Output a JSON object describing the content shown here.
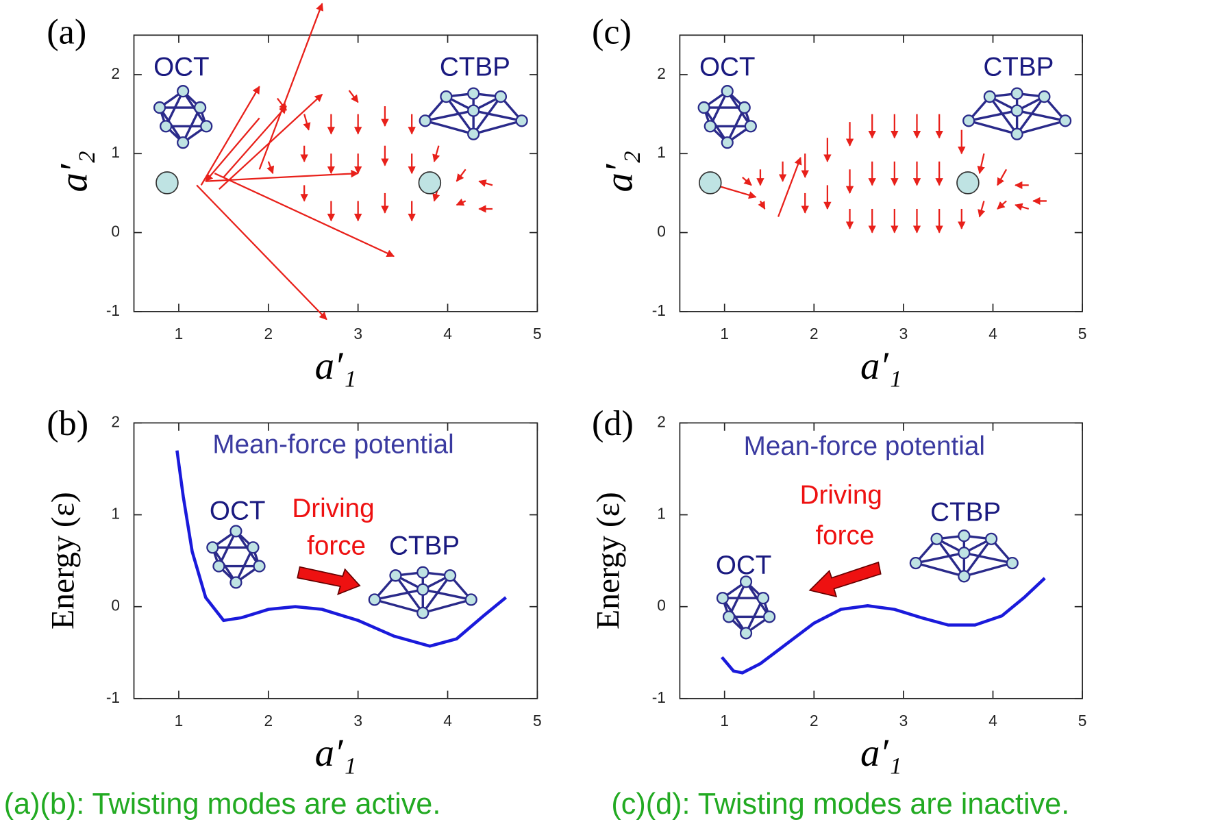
{
  "chart_data": [
    {
      "type": "quiver",
      "label": "(a)",
      "x_label": "a′₁",
      "y_label": "a′₂",
      "xlim": [
        0.5,
        5
      ],
      "ylim": [
        -1,
        2.5
      ],
      "xticks": [
        1,
        2,
        3,
        4,
        5
      ],
      "yticks": [
        -1,
        0,
        1,
        2
      ],
      "color": "#e8201a",
      "arrows": [
        [
          1.2,
          0.6,
          1.45,
          -1.7
        ],
        [
          1.4,
          0.75,
          2.0,
          -1.05
        ],
        [
          1.3,
          0.65,
          1.7,
          0.1
        ],
        [
          1.9,
          0.8,
          0.7,
          2.1
        ],
        [
          1.25,
          0.6,
          0.65,
          1.25
        ],
        [
          1.5,
          0.7,
          0.7,
          0.9
        ],
        [
          1.45,
          0.55,
          1.15,
          1.2
        ],
        [
          1.9,
          1.45,
          -0.6,
          -0.8
        ],
        [
          2.1,
          1.7,
          0.1,
          -0.15
        ],
        [
          2.4,
          1.5,
          0.05,
          -0.2
        ],
        [
          2.4,
          1.1,
          0,
          -0.2
        ],
        [
          2.4,
          0.6,
          0,
          -0.2
        ],
        [
          2.7,
          1.5,
          0,
          -0.25
        ],
        [
          2.7,
          1.0,
          0,
          -0.25
        ],
        [
          2.7,
          0.4,
          0,
          -0.25
        ],
        [
          3.0,
          1.5,
          0,
          -0.25
        ],
        [
          3.0,
          1.0,
          0,
          -0.25
        ],
        [
          3.0,
          0.4,
          0,
          -0.25
        ],
        [
          3.3,
          1.6,
          0,
          -0.25
        ],
        [
          3.3,
          1.1,
          0,
          -0.25
        ],
        [
          3.3,
          0.5,
          0,
          -0.25
        ],
        [
          3.6,
          1.5,
          0,
          -0.25
        ],
        [
          3.6,
          1.0,
          0,
          -0.25
        ],
        [
          3.6,
          0.4,
          0,
          -0.25
        ],
        [
          3.9,
          1.1,
          -0.05,
          -0.2
        ],
        [
          3.9,
          0.6,
          -0.05,
          -0.2
        ],
        [
          4.2,
          0.8,
          -0.1,
          -0.15
        ],
        [
          4.2,
          0.4,
          -0.1,
          -0.05
        ],
        [
          4.5,
          0.6,
          -0.15,
          0.05
        ],
        [
          4.5,
          0.3,
          -0.15,
          0
        ],
        [
          2.9,
          1.8,
          0.1,
          -0.15
        ],
        [
          2.0,
          0.9,
          0.05,
          -0.15
        ]
      ],
      "markers": {
        "x": [
          0.87,
          3.8
        ],
        "y": [
          0.63,
          0.63
        ],
        "color": "#bfe3e3"
      },
      "annotations": [
        "OCT",
        "CTBP"
      ]
    },
    {
      "type": "line",
      "label": "(b)",
      "x_label": "a′₁",
      "y_label": "Energy  (ε)",
      "xlim": [
        0.5,
        5
      ],
      "ylim": [
        -1,
        2
      ],
      "xticks": [
        1,
        2,
        3,
        4,
        5
      ],
      "yticks": [
        -1,
        0,
        1,
        2
      ],
      "series": [
        {
          "name": "Mean-force potential",
          "color": "#1a1adb",
          "x": [
            0.98,
            1.05,
            1.15,
            1.3,
            1.5,
            1.7,
            2.0,
            2.3,
            2.6,
            3.0,
            3.4,
            3.8,
            4.1,
            4.4,
            4.65
          ],
          "values": [
            1.7,
            1.2,
            0.6,
            0.1,
            -0.15,
            -0.12,
            -0.03,
            0.0,
            -0.03,
            -0.15,
            -0.32,
            -0.43,
            -0.35,
            -0.1,
            0.1
          ]
        }
      ],
      "annotations": [
        "OCT",
        "Driving",
        "force",
        "CTBP"
      ]
    },
    {
      "type": "quiver",
      "label": "(c)",
      "x_label": "a′₁",
      "y_label": "a′₂",
      "xlim": [
        0.5,
        5
      ],
      "ylim": [
        -1,
        2.5
      ],
      "xticks": [
        1,
        2,
        3,
        4,
        5
      ],
      "yticks": [
        -1,
        0,
        1,
        2
      ],
      "color": "#e8201a",
      "arrows": [
        [
          0.9,
          0.6,
          0.45,
          -0.15
        ],
        [
          1.6,
          0.2,
          0.25,
          0.75
        ],
        [
          1.2,
          0.7,
          0.1,
          -0.1
        ],
        [
          1.4,
          0.8,
          0,
          -0.2
        ],
        [
          1.4,
          0.4,
          0.05,
          -0.1
        ],
        [
          1.65,
          0.9,
          0,
          -0.25
        ],
        [
          1.9,
          1.0,
          0,
          -0.3
        ],
        [
          1.9,
          0.5,
          0,
          -0.25
        ],
        [
          2.15,
          1.2,
          0,
          -0.3
        ],
        [
          2.15,
          0.6,
          0,
          -0.3
        ],
        [
          2.4,
          1.4,
          0,
          -0.3
        ],
        [
          2.4,
          0.8,
          0,
          -0.3
        ],
        [
          2.4,
          0.3,
          0,
          -0.25
        ],
        [
          2.65,
          1.5,
          0,
          -0.3
        ],
        [
          2.65,
          0.9,
          0,
          -0.3
        ],
        [
          2.65,
          0.3,
          0,
          -0.3
        ],
        [
          2.9,
          1.5,
          0,
          -0.3
        ],
        [
          2.9,
          0.9,
          0,
          -0.3
        ],
        [
          2.9,
          0.3,
          0,
          -0.3
        ],
        [
          3.15,
          1.5,
          0,
          -0.3
        ],
        [
          3.15,
          0.9,
          0,
          -0.3
        ],
        [
          3.15,
          0.3,
          0,
          -0.3
        ],
        [
          3.4,
          1.5,
          0,
          -0.3
        ],
        [
          3.4,
          0.9,
          0,
          -0.3
        ],
        [
          3.4,
          0.3,
          0,
          -0.3
        ],
        [
          3.65,
          1.3,
          0,
          -0.3
        ],
        [
          3.65,
          0.3,
          0,
          -0.25
        ],
        [
          3.9,
          1.0,
          -0.05,
          -0.25
        ],
        [
          3.9,
          0.4,
          -0.05,
          -0.2
        ],
        [
          4.15,
          0.8,
          -0.1,
          -0.2
        ],
        [
          4.15,
          0.4,
          -0.1,
          -0.1
        ],
        [
          4.4,
          0.6,
          -0.15,
          0
        ],
        [
          4.4,
          0.3,
          -0.15,
          0.05
        ],
        [
          4.6,
          0.4,
          -0.15,
          0
        ]
      ],
      "markers": {
        "x": [
          0.84,
          3.72
        ],
        "y": [
          0.63,
          0.63
        ],
        "color": "#bfe3e3"
      },
      "annotations": [
        "OCT",
        "CTBP"
      ]
    },
    {
      "type": "line",
      "label": "(d)",
      "x_label": "a′₁",
      "y_label": "Energy  (ε)",
      "xlim": [
        0.5,
        5
      ],
      "ylim": [
        -1,
        2
      ],
      "xticks": [
        1,
        2,
        3,
        4,
        5
      ],
      "yticks": [
        -1,
        0,
        1,
        2
      ],
      "series": [
        {
          "name": "Mean-force potential",
          "color": "#1a1adb",
          "x": [
            0.97,
            1.1,
            1.2,
            1.4,
            1.7,
            2.0,
            2.3,
            2.6,
            2.9,
            3.2,
            3.5,
            3.8,
            4.1,
            4.35,
            4.58
          ],
          "values": [
            -0.55,
            -0.7,
            -0.72,
            -0.62,
            -0.4,
            -0.18,
            -0.03,
            0.01,
            -0.03,
            -0.12,
            -0.2,
            -0.2,
            -0.1,
            0.1,
            0.31
          ]
        }
      ],
      "annotations": [
        "Driving",
        "force",
        "OCT",
        "CTBP"
      ]
    }
  ],
  "captions": [
    "(a)(b): Twisting modes are active.",
    "(c)(d): Twisting modes are inactive."
  ]
}
